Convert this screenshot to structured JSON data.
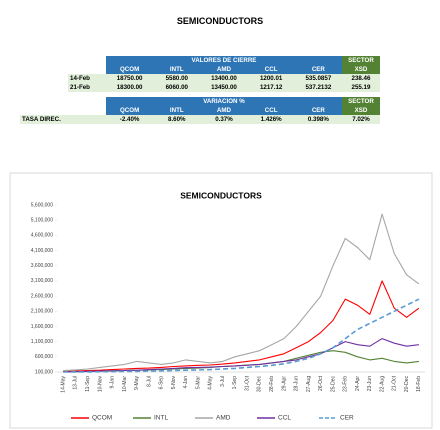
{
  "header": {
    "title": "SEMICONDUCTORS"
  },
  "table1": {
    "group_header": "VALORES DE CIERRE",
    "sector_header": "SECTOR",
    "columns": [
      "QCOM",
      "INTL",
      "AMD",
      "CCL",
      "CER",
      "XSD"
    ],
    "rows": [
      [
        "14-Feb",
        "18750.00",
        "5580.00",
        "13400.00",
        "1200.01",
        "535.0857",
        "238.46"
      ],
      [
        "21-Feb",
        "18300.00",
        "6060.00",
        "13450.00",
        "1217.12",
        "537.2132",
        "255.19"
      ]
    ]
  },
  "table2": {
    "group_header": "VARIACION %",
    "sector_header": "SECTOR",
    "columns": [
      "QCOM",
      "INTL",
      "AMD",
      "CCL",
      "CER",
      "XSD"
    ],
    "rows": [
      [
        "TASA DIREC.",
        "-2.40%",
        "8.60%",
        "0.37%",
        "1.426%",
        "0.398%",
        "7.02%"
      ]
    ]
  },
  "chart_data": {
    "type": "line",
    "title": "SEMICONDUCTORS",
    "categories": [
      "14-May",
      "13-Jul",
      "11-Sep",
      "10-Nov",
      "9-Jan",
      "10-Mar",
      "9-May",
      "8-Jul",
      "6-Sep",
      "5-Nov",
      "4-Jan",
      "5-Mar",
      "4-May",
      "3-Jul",
      "1-Sep",
      "31-Oct",
      "30-Dec",
      "28-Feb",
      "29-Apr",
      "28-Jun",
      "27-Aug",
      "26-Oct",
      "25-Dec",
      "23-Feb",
      "24-Apr",
      "23-Jun",
      "22-Aug",
      "21-Oct",
      "20-Dec",
      "18-Feb"
    ],
    "series": [
      {
        "name": "QCOM",
        "color": "#ff0000",
        "values": [
          120000,
          130000,
          150000,
          160000,
          180000,
          200000,
          220000,
          230000,
          250000,
          280000,
          300000,
          320000,
          330000,
          360000,
          400000,
          450000,
          500000,
          600000,
          700000,
          900000,
          1100000,
          1400000,
          1800000,
          2500000,
          2300000,
          2000000,
          3100000,
          2200000,
          1900000,
          2200000
        ]
      },
      {
        "name": "INTL",
        "color": "#548235",
        "values": [
          100000,
          110000,
          120000,
          130000,
          140000,
          150000,
          160000,
          170000,
          180000,
          200000,
          220000,
          230000,
          250000,
          280000,
          300000,
          330000,
          350000,
          400000,
          450000,
          550000,
          650000,
          750000,
          800000,
          750000,
          600000,
          500000,
          550000,
          450000,
          400000,
          450000
        ]
      },
      {
        "name": "AMD",
        "color": "#a6a6a6",
        "values": [
          150000,
          170000,
          200000,
          250000,
          300000,
          350000,
          450000,
          400000,
          350000,
          400000,
          500000,
          450000,
          400000,
          450000,
          600000,
          700000,
          800000,
          1000000,
          1200000,
          1600000,
          2100000,
          2600000,
          3600000,
          4500000,
          4200000,
          3800000,
          5300000,
          4000000,
          3300000,
          3000000
        ]
      },
      {
        "name": "CCL",
        "color": "#7030a0",
        "values": [
          100000,
          110000,
          120000,
          130000,
          140000,
          150000,
          160000,
          180000,
          200000,
          220000,
          240000,
          250000,
          260000,
          280000,
          300000,
          320000,
          350000,
          400000,
          450000,
          500000,
          600000,
          700000,
          900000,
          1100000,
          1000000,
          950000,
          1200000,
          1050000,
          950000,
          1000000
        ]
      },
      {
        "name": "CER",
        "color": "#5b9bd5",
        "line_style": "dashed",
        "values": [
          100000,
          100000,
          100000,
          110000,
          110000,
          120000,
          120000,
          130000,
          140000,
          150000,
          160000,
          170000,
          180000,
          200000,
          220000,
          250000,
          280000,
          320000,
          370000,
          450000,
          550000,
          700000,
          900000,
          1200000,
          1500000,
          1700000,
          1900000,
          2100000,
          2300000,
          2500000
        ]
      }
    ],
    "ylim": [
      100000,
      5600000
    ],
    "yticks": [
      {
        "value": 100000,
        "label": "100,000"
      },
      {
        "value": 600000,
        "label": "600,000"
      },
      {
        "value": 1100000,
        "label": "1,100,000"
      },
      {
        "value": 1600000,
        "label": "1,600,000"
      },
      {
        "value": 2100000,
        "label": "2,100,000"
      },
      {
        "value": 2600000,
        "label": "2,600,000"
      },
      {
        "value": 3100000,
        "label": "3,100,000"
      },
      {
        "value": 3600000,
        "label": "3,600,000"
      },
      {
        "value": 4100000,
        "label": "4,100,000"
      },
      {
        "value": 4600000,
        "label": "4,600,000"
      },
      {
        "value": 5100000,
        "label": "5,100,000"
      },
      {
        "value": 5600000,
        "label": "5,600,000"
      }
    ],
    "grid": false,
    "legend": "bottom"
  }
}
